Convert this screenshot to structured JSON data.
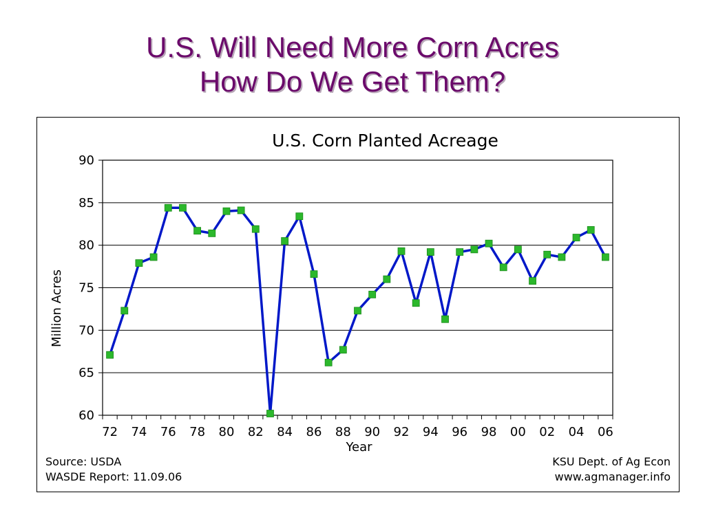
{
  "slide": {
    "title_line1": "U.S. Will Need More Corn Acres",
    "title_line2": "How Do We Get Them?"
  },
  "footer": {
    "source": "Source:  USDA",
    "report": "WASDE Report:  11.09.06",
    "org": "KSU Dept. of Ag Econ",
    "website": "www.agmanager.info"
  },
  "colors": {
    "title": "#6b0a6b",
    "line": "#0018c8",
    "marker": "#2cb82c"
  },
  "chart_data": {
    "type": "line",
    "title": "U.S. Corn Planted Acreage",
    "xlabel": "Year",
    "ylabel": "Million Acres",
    "ylim": [
      60,
      90
    ],
    "yticks": [
      60,
      65,
      70,
      75,
      80,
      85,
      90
    ],
    "xtick_labels": [
      "72",
      "74",
      "76",
      "78",
      "80",
      "82",
      "84",
      "86",
      "88",
      "90",
      "92",
      "94",
      "96",
      "98",
      "00",
      "02",
      "04",
      "06"
    ],
    "grid": "horizontal",
    "legend": "none",
    "x": [
      1972,
      1973,
      1974,
      1975,
      1976,
      1977,
      1978,
      1979,
      1980,
      1981,
      1982,
      1983,
      1984,
      1985,
      1986,
      1987,
      1988,
      1989,
      1990,
      1991,
      1992,
      1993,
      1994,
      1995,
      1996,
      1997,
      1998,
      1999,
      2000,
      2001,
      2002,
      2003,
      2004,
      2005,
      2006
    ],
    "values": [
      67.1,
      72.3,
      77.9,
      78.6,
      84.4,
      84.4,
      81.7,
      81.4,
      84.0,
      84.1,
      81.9,
      60.2,
      80.5,
      83.4,
      76.6,
      66.2,
      67.7,
      72.3,
      74.2,
      76.0,
      79.3,
      73.2,
      79.2,
      71.3,
      79.2,
      79.5,
      80.2,
      77.4,
      79.5,
      75.8,
      78.9,
      78.6,
      80.9,
      81.8,
      78.6
    ]
  }
}
